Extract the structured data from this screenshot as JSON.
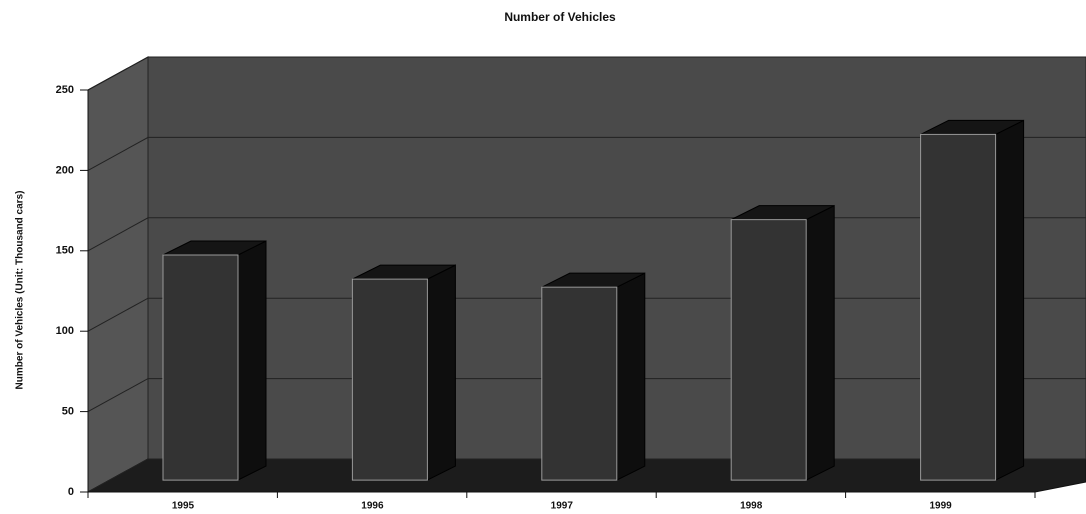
{
  "chart_data": {
    "type": "bar3d",
    "title": "Number of Vehicles",
    "y_label": "Number of Vehicles (Unit: Thousand cars)",
    "categories": [
      "1995",
      "1996",
      "1997",
      "1998",
      "1999"
    ],
    "values": [
      140,
      125,
      120,
      162,
      215
    ],
    "color": "#333333",
    "ylim": [
      0,
      250
    ],
    "yticks": [
      0,
      50,
      100,
      150,
      200,
      250
    ],
    "grid": true
  }
}
